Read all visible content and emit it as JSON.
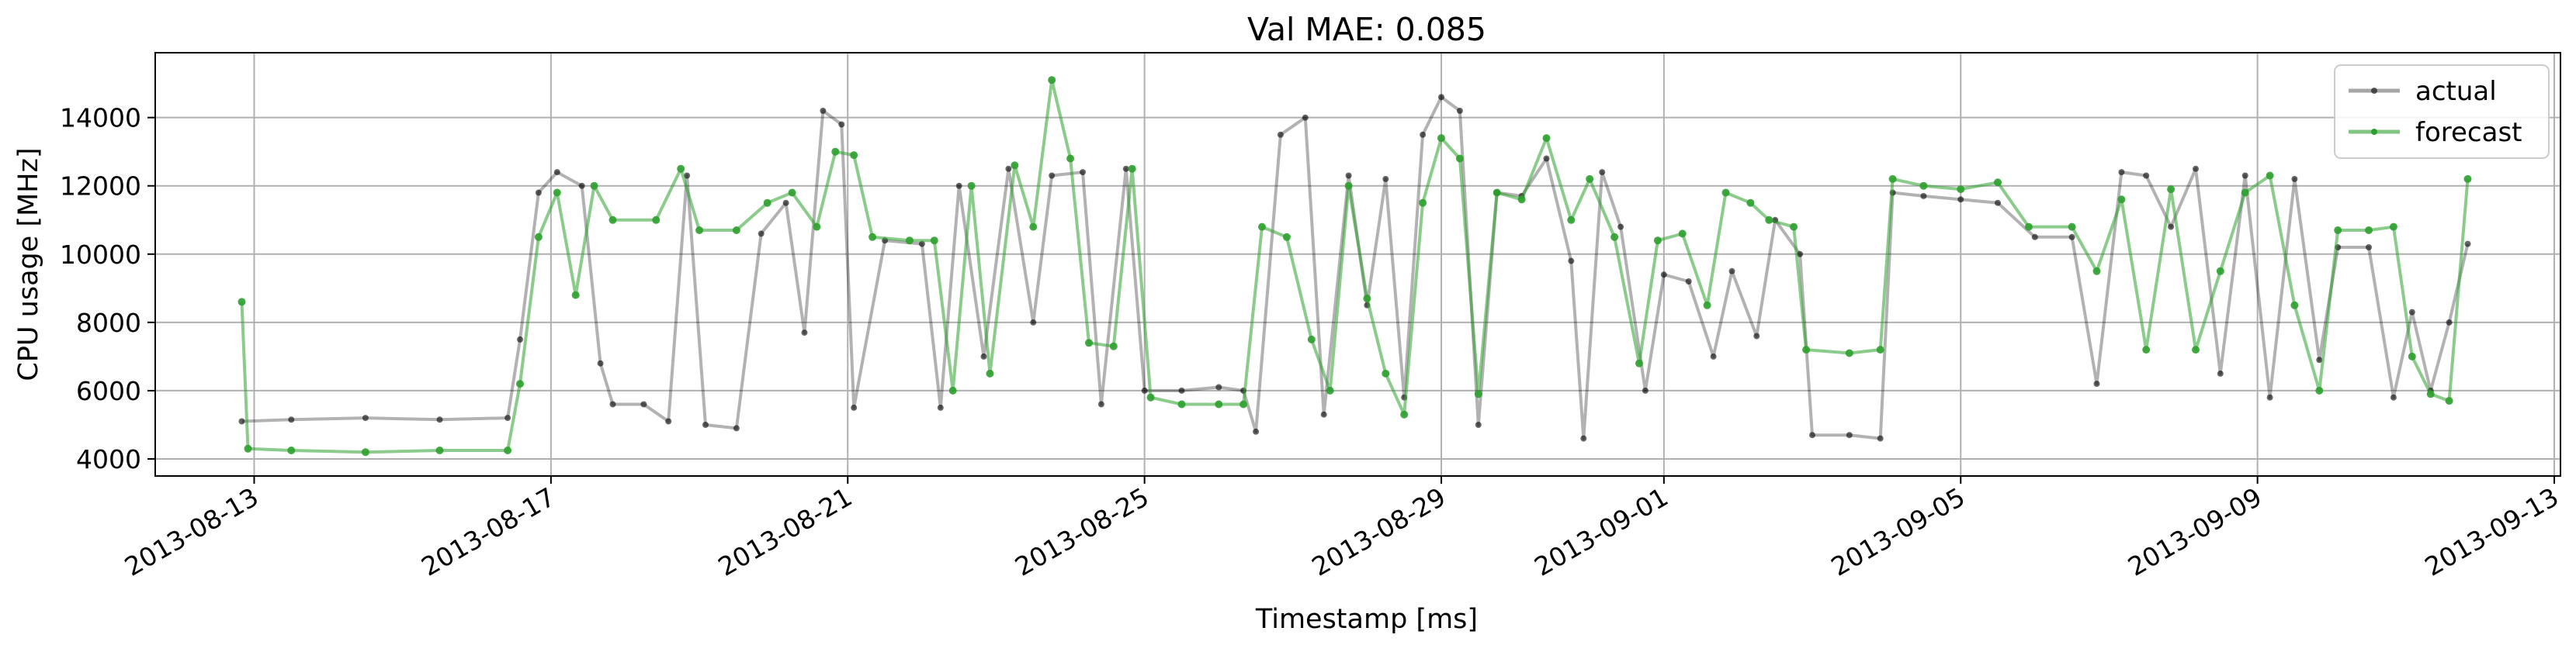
{
  "chart_data": {
    "type": "line",
    "title": "Val MAE: 0.085",
    "xlabel": "Timestamp [ms]",
    "ylabel": "CPU usage [MHz]",
    "x_type": "date",
    "xlim": [
      "2013-08-11T16:00",
      "2013-09-13T02:00"
    ],
    "ylim": [
      3500,
      15900
    ],
    "x_ticks": [
      "2013-08-13",
      "2013-08-17",
      "2013-08-21",
      "2013-08-25",
      "2013-08-29",
      "2013-09-01",
      "2013-09-05",
      "2013-09-09",
      "2013-09-13"
    ],
    "y_ticks": [
      4000,
      6000,
      8000,
      10000,
      12000,
      14000
    ],
    "grid": true,
    "legend_position": "top-right",
    "series": [
      {
        "name": "actual",
        "color": "#000000",
        "points": [
          [
            "2013-08-12T20:00",
            5100
          ],
          [
            "2013-08-13T12:00",
            5150
          ],
          [
            "2013-08-14T12:00",
            5200
          ],
          [
            "2013-08-15T12:00",
            5150
          ],
          [
            "2013-08-16T10:00",
            5200
          ],
          [
            "2013-08-16T14:00",
            7500
          ],
          [
            "2013-08-16T20:00",
            11800
          ],
          [
            "2013-08-17T02:00",
            12400
          ],
          [
            "2013-08-17T10:00",
            12000
          ],
          [
            "2013-08-17T16:00",
            6800
          ],
          [
            "2013-08-17T20:00",
            5600
          ],
          [
            "2013-08-18T06:00",
            5600
          ],
          [
            "2013-08-18T14:00",
            5100
          ],
          [
            "2013-08-18T20:00",
            12300
          ],
          [
            "2013-08-19T02:00",
            5000
          ],
          [
            "2013-08-19T12:00",
            4900
          ],
          [
            "2013-08-19T20:00",
            10600
          ],
          [
            "2013-08-20T04:00",
            11500
          ],
          [
            "2013-08-20T10:00",
            7700
          ],
          [
            "2013-08-20T16:00",
            14200
          ],
          [
            "2013-08-20T22:00",
            13800
          ],
          [
            "2013-08-21T02:00",
            5500
          ],
          [
            "2013-08-21T12:00",
            10400
          ],
          [
            "2013-08-22T00:00",
            10300
          ],
          [
            "2013-08-22T06:00",
            5500
          ],
          [
            "2013-08-22T12:00",
            12000
          ],
          [
            "2013-08-22T20:00",
            7000
          ],
          [
            "2013-08-23T04:00",
            12500
          ],
          [
            "2013-08-23T12:00",
            8000
          ],
          [
            "2013-08-23T18:00",
            12300
          ],
          [
            "2013-08-24T04:00",
            12400
          ],
          [
            "2013-08-24T10:00",
            5600
          ],
          [
            "2013-08-24T18:00",
            12500
          ],
          [
            "2013-08-25T00:00",
            6000
          ],
          [
            "2013-08-25T12:00",
            6000
          ],
          [
            "2013-08-26T00:00",
            6100
          ],
          [
            "2013-08-26T08:00",
            6000
          ],
          [
            "2013-08-26T12:00",
            4800
          ],
          [
            "2013-08-26T20:00",
            13500
          ],
          [
            "2013-08-27T04:00",
            14000
          ],
          [
            "2013-08-27T10:00",
            5300
          ],
          [
            "2013-08-27T18:00",
            12300
          ],
          [
            "2013-08-28T00:00",
            8500
          ],
          [
            "2013-08-28T06:00",
            12200
          ],
          [
            "2013-08-28T12:00",
            5800
          ],
          [
            "2013-08-28T18:00",
            13500
          ],
          [
            "2013-08-29T00:00",
            14600
          ],
          [
            "2013-08-29T06:00",
            14200
          ],
          [
            "2013-08-29T12:00",
            5000
          ],
          [
            "2013-08-29T18:00",
            11800
          ],
          [
            "2013-08-30T02:00",
            11700
          ],
          [
            "2013-08-30T10:00",
            12800
          ],
          [
            "2013-08-30T18:00",
            9800
          ],
          [
            "2013-08-30T22:00",
            4600
          ],
          [
            "2013-08-31T04:00",
            12400
          ],
          [
            "2013-08-31T10:00",
            10800
          ],
          [
            "2013-08-31T18:00",
            6000
          ],
          [
            "2013-09-01T00:00",
            9400
          ],
          [
            "2013-09-01T08:00",
            9200
          ],
          [
            "2013-09-01T16:00",
            7000
          ],
          [
            "2013-09-01T22:00",
            9500
          ],
          [
            "2013-09-02T06:00",
            7600
          ],
          [
            "2013-09-02T12:00",
            11000
          ],
          [
            "2013-09-02T20:00",
            10000
          ],
          [
            "2013-09-03T00:00",
            4700
          ],
          [
            "2013-09-03T12:00",
            4700
          ],
          [
            "2013-09-03T22:00",
            4600
          ],
          [
            "2013-09-04T02:00",
            11800
          ],
          [
            "2013-09-04T12:00",
            11700
          ],
          [
            "2013-09-05T00:00",
            11600
          ],
          [
            "2013-09-05T12:00",
            11500
          ],
          [
            "2013-09-06T00:00",
            10500
          ],
          [
            "2013-09-06T12:00",
            10500
          ],
          [
            "2013-09-06T20:00",
            6200
          ],
          [
            "2013-09-07T04:00",
            12400
          ],
          [
            "2013-09-07T12:00",
            12300
          ],
          [
            "2013-09-07T20:00",
            10800
          ],
          [
            "2013-09-08T04:00",
            12500
          ],
          [
            "2013-09-08T12:00",
            6500
          ],
          [
            "2013-09-08T20:00",
            12300
          ],
          [
            "2013-09-09T04:00",
            5800
          ],
          [
            "2013-09-09T12:00",
            12200
          ],
          [
            "2013-09-09T20:00",
            6900
          ],
          [
            "2013-09-10T02:00",
            10200
          ],
          [
            "2013-09-10T12:00",
            10200
          ],
          [
            "2013-09-10T20:00",
            5800
          ],
          [
            "2013-09-11T02:00",
            8300
          ],
          [
            "2013-09-11T08:00",
            6000
          ],
          [
            "2013-09-11T14:00",
            8000
          ],
          [
            "2013-09-11T20:00",
            10300
          ]
        ]
      },
      {
        "name": "forecast",
        "color": "#2ca02c",
        "points": [
          [
            "2013-08-12T20:00",
            8600
          ],
          [
            "2013-08-12T22:00",
            4300
          ],
          [
            "2013-08-13T12:00",
            4250
          ],
          [
            "2013-08-14T12:00",
            4200
          ],
          [
            "2013-08-15T12:00",
            4250
          ],
          [
            "2013-08-16T10:00",
            4250
          ],
          [
            "2013-08-16T14:00",
            6200
          ],
          [
            "2013-08-16T20:00",
            10500
          ],
          [
            "2013-08-17T02:00",
            11800
          ],
          [
            "2013-08-17T08:00",
            8800
          ],
          [
            "2013-08-17T14:00",
            12000
          ],
          [
            "2013-08-17T20:00",
            11000
          ],
          [
            "2013-08-18T10:00",
            11000
          ],
          [
            "2013-08-18T18:00",
            12500
          ],
          [
            "2013-08-19T00:00",
            10700
          ],
          [
            "2013-08-19T12:00",
            10700
          ],
          [
            "2013-08-19T22:00",
            11500
          ],
          [
            "2013-08-20T06:00",
            11800
          ],
          [
            "2013-08-20T14:00",
            10800
          ],
          [
            "2013-08-20T20:00",
            13000
          ],
          [
            "2013-08-21T02:00",
            12900
          ],
          [
            "2013-08-21T08:00",
            10500
          ],
          [
            "2013-08-21T20:00",
            10400
          ],
          [
            "2013-08-22T04:00",
            10400
          ],
          [
            "2013-08-22T10:00",
            6000
          ],
          [
            "2013-08-22T16:00",
            12000
          ],
          [
            "2013-08-22T22:00",
            6500
          ],
          [
            "2013-08-23T06:00",
            12600
          ],
          [
            "2013-08-23T12:00",
            10800
          ],
          [
            "2013-08-23T18:00",
            15100
          ],
          [
            "2013-08-24T00:00",
            12800
          ],
          [
            "2013-08-24T06:00",
            7400
          ],
          [
            "2013-08-24T14:00",
            7300
          ],
          [
            "2013-08-24T20:00",
            12500
          ],
          [
            "2013-08-25T02:00",
            5800
          ],
          [
            "2013-08-25T12:00",
            5600
          ],
          [
            "2013-08-26T00:00",
            5600
          ],
          [
            "2013-08-26T08:00",
            5600
          ],
          [
            "2013-08-26T14:00",
            10800
          ],
          [
            "2013-08-26T22:00",
            10500
          ],
          [
            "2013-08-27T06:00",
            7500
          ],
          [
            "2013-08-27T12:00",
            6000
          ],
          [
            "2013-08-27T18:00",
            12000
          ],
          [
            "2013-08-28T00:00",
            8700
          ],
          [
            "2013-08-28T06:00",
            6500
          ],
          [
            "2013-08-28T12:00",
            5300
          ],
          [
            "2013-08-28T18:00",
            11500
          ],
          [
            "2013-08-29T00:00",
            13400
          ],
          [
            "2013-08-29T06:00",
            12800
          ],
          [
            "2013-08-29T12:00",
            5900
          ],
          [
            "2013-08-29T18:00",
            11800
          ],
          [
            "2013-08-30T02:00",
            11600
          ],
          [
            "2013-08-30T10:00",
            13400
          ],
          [
            "2013-08-30T18:00",
            11000
          ],
          [
            "2013-08-31T00:00",
            12200
          ],
          [
            "2013-08-31T08:00",
            10500
          ],
          [
            "2013-08-31T16:00",
            6800
          ],
          [
            "2013-08-31T22:00",
            10400
          ],
          [
            "2013-09-01T06:00",
            10600
          ],
          [
            "2013-09-01T14:00",
            8500
          ],
          [
            "2013-09-01T20:00",
            11800
          ],
          [
            "2013-09-02T04:00",
            11500
          ],
          [
            "2013-09-02T10:00",
            11000
          ],
          [
            "2013-09-02T18:00",
            10800
          ],
          [
            "2013-09-02T22:00",
            7200
          ],
          [
            "2013-09-03T12:00",
            7100
          ],
          [
            "2013-09-03T22:00",
            7200
          ],
          [
            "2013-09-04T02:00",
            12200
          ],
          [
            "2013-09-04T12:00",
            12000
          ],
          [
            "2013-09-05T00:00",
            11900
          ],
          [
            "2013-09-05T12:00",
            12100
          ],
          [
            "2013-09-05T22:00",
            10800
          ],
          [
            "2013-09-06T12:00",
            10800
          ],
          [
            "2013-09-06T20:00",
            9500
          ],
          [
            "2013-09-07T04:00",
            11600
          ],
          [
            "2013-09-07T12:00",
            7200
          ],
          [
            "2013-09-07T20:00",
            11900
          ],
          [
            "2013-09-08T04:00",
            7200
          ],
          [
            "2013-09-08T12:00",
            9500
          ],
          [
            "2013-09-08T20:00",
            11800
          ],
          [
            "2013-09-09T04:00",
            12300
          ],
          [
            "2013-09-09T12:00",
            8500
          ],
          [
            "2013-09-09T20:00",
            6000
          ],
          [
            "2013-09-10T02:00",
            10700
          ],
          [
            "2013-09-10T12:00",
            10700
          ],
          [
            "2013-09-10T20:00",
            10800
          ],
          [
            "2013-09-11T02:00",
            7000
          ],
          [
            "2013-09-11T08:00",
            5900
          ],
          [
            "2013-09-11T14:00",
            5700
          ],
          [
            "2013-09-11T20:00",
            12200
          ]
        ]
      }
    ]
  }
}
